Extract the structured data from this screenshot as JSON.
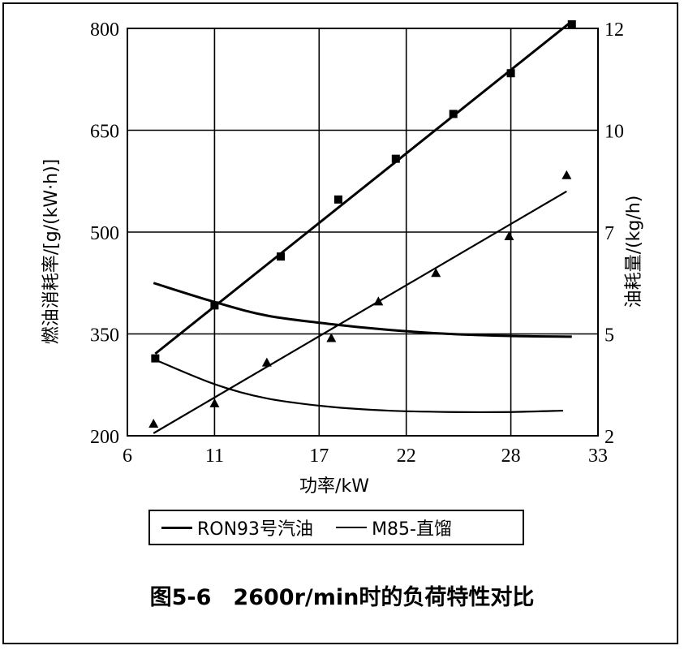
{
  "chart_data": {
    "type": "line",
    "x": [
      7.5,
      11,
      14,
      17.5,
      21,
      24.5,
      28,
      31.5
    ],
    "xlabel": "功率/kW",
    "x_ticks": [
      "6",
      "11",
      "17",
      "22",
      "28",
      "33"
    ],
    "xlim": [
      6,
      33
    ],
    "ylabel_left": "燃油消耗率/[g/(kW·h)]",
    "y_left_ticks": [
      "200",
      "350",
      "500",
      "650",
      "800"
    ],
    "ylim_left": [
      200,
      800
    ],
    "ylabel_right": "油耗量/(kg/h)",
    "y_right_ticks": [
      "2",
      "5",
      "7",
      "10",
      "12"
    ],
    "ylim_right": [
      2,
      12
    ],
    "grid": true,
    "series": [
      {
        "name": "RON93号汽油",
        "kind": "bsfc",
        "axis": "left",
        "style": "thick",
        "x": [
          7.5,
          11,
          14,
          17.5,
          21,
          24.5,
          28,
          31.5
        ],
        "values": [
          425,
          397,
          377,
          365,
          356,
          350,
          347,
          346
        ]
      },
      {
        "name": "M85-直馏",
        "kind": "bsfc",
        "axis": "left",
        "style": "thin",
        "x": [
          7.5,
          11,
          14,
          17.5,
          21,
          24.5,
          28,
          31
        ],
        "values": [
          313,
          276,
          255,
          243,
          237,
          235,
          235,
          237
        ]
      },
      {
        "name": "RON93号汽油",
        "kind": "fuel_consumption",
        "axis": "right",
        "style": "thick",
        "marker": "square",
        "x": [
          7.6,
          11.0,
          14.8,
          18.1,
          21.4,
          24.7,
          28.0,
          31.5
        ],
        "values": [
          3.9,
          5.2,
          6.4,
          7.8,
          8.8,
          9.9,
          10.9,
          12.1
        ]
      },
      {
        "name": "M85-直馏",
        "kind": "fuel_consumption",
        "axis": "right",
        "style": "thin",
        "marker": "triangle",
        "x": [
          7.5,
          11.0,
          14.0,
          17.7,
          20.4,
          23.7,
          27.9,
          31.2
        ],
        "values": [
          2.3,
          2.8,
          3.8,
          4.4,
          5.3,
          6.0,
          6.9,
          8.4
        ]
      }
    ],
    "legend_position": "bottom"
  },
  "legend": {
    "entry1": "RON93号汽油",
    "entry2": "M85-直馏"
  },
  "caption": "图5-6　2600r/min时的负荷特性对比"
}
